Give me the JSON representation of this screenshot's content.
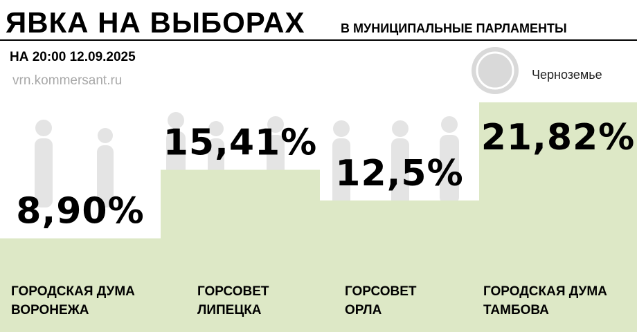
{
  "chart_data": {
    "type": "bar",
    "title": "ЯВКА НА ВЫБОРАХ",
    "subtitle": "В МУНИЦИПАЛЬНЫЕ ПАРЛАМЕНТЫ",
    "note": "НА 20:00 12.09.2025",
    "source": "vrn.kommersant.ru",
    "brand": "Черноземье",
    "categories": [
      "ГОРОДСКАЯ ДУМА\nВОРОНЕЖА",
      "ГОРСОВЕТ\nЛИПЕЦКА",
      "ГОРСОВЕТ\nОРЛА",
      "ГОРОДСКАЯ ДУМА\nТАМБОВА"
    ],
    "values": [
      8.9,
      15.41,
      12.5,
      21.82
    ],
    "value_labels": [
      "8,90%",
      "15,41%",
      "12,5%",
      "21,82%"
    ],
    "color": "#dde8c6",
    "ylim": [
      0,
      23
    ]
  }
}
